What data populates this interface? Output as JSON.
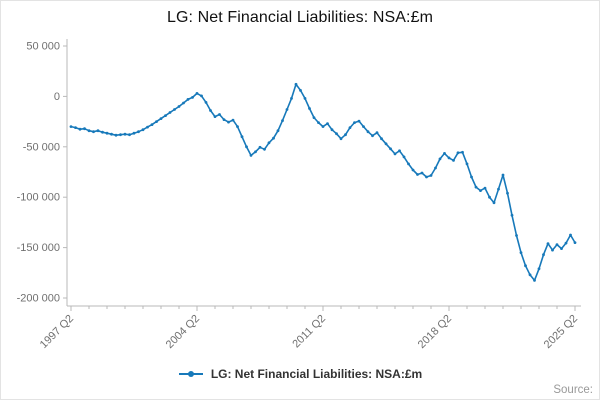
{
  "title": "LG: Net Financial Liabilities: NSA:£m",
  "source_label": "Source:",
  "legend": {
    "label": "LG: Net Financial Liabilities: NSA:£m"
  },
  "colors": {
    "line": "#1779ba",
    "axis": "#b9b9b9",
    "tick_text": "#707070"
  },
  "chart_data": {
    "type": "line",
    "title": "LG: Net Financial Liabilities: NSA:£m",
    "series_name": "LG: Net Financial Liabilities: NSA:£m",
    "frequency": "quarterly",
    "x_start": "1997 Q2",
    "x_end": "2025 Q2",
    "ylim": [
      -200000,
      50000
    ],
    "grid": false,
    "markers": true,
    "legend_position": "bottom",
    "x_ticks": [
      {
        "index": 0,
        "label": "1997 Q2"
      },
      {
        "index": 28,
        "label": "2004 Q2"
      },
      {
        "index": 56,
        "label": "2011 Q2"
      },
      {
        "index": 84,
        "label": "2018 Q2"
      },
      {
        "index": 112,
        "label": "2025 Q2"
      }
    ],
    "y_ticks": [
      {
        "value": 50000,
        "label": "50 000"
      },
      {
        "value": 0,
        "label": "0"
      },
      {
        "value": -50000,
        "label": "-50 000"
      },
      {
        "value": -100000,
        "label": "-100 000"
      },
      {
        "value": -150000,
        "label": "-150 000"
      },
      {
        "value": -200000,
        "label": "-200 000"
      }
    ],
    "values": [
      -30000,
      -31000,
      -32500,
      -32000,
      -34000,
      -35000,
      -34000,
      -35500,
      -36500,
      -37500,
      -38500,
      -38000,
      -37500,
      -38000,
      -36500,
      -35000,
      -33000,
      -30500,
      -28000,
      -25000,
      -22000,
      -19000,
      -16000,
      -13000,
      -10000,
      -6500,
      -3000,
      -1000,
      3000,
      500,
      -6000,
      -14000,
      -20000,
      -18000,
      -23000,
      -25500,
      -23500,
      -30000,
      -40000,
      -50000,
      -58500,
      -55000,
      -50500,
      -52500,
      -46000,
      -41500,
      -34000,
      -24000,
      -13000,
      -2000,
      12000,
      6000,
      -2000,
      -12000,
      -21000,
      -26000,
      -30000,
      -27000,
      -33000,
      -37000,
      -42000,
      -38000,
      -31000,
      -26000,
      -24500,
      -30000,
      -35000,
      -39000,
      -36000,
      -42000,
      -47000,
      -52000,
      -57000,
      -54000,
      -60000,
      -67000,
      -73000,
      -77500,
      -76000,
      -80000,
      -78500,
      -71000,
      -62000,
      -56500,
      -61000,
      -63500,
      -56000,
      -55500,
      -67000,
      -80000,
      -90000,
      -93500,
      -91000,
      -100000,
      -105500,
      -92000,
      -78000,
      -96000,
      -118000,
      -138000,
      -155000,
      -168000,
      -177000,
      -182500,
      -171000,
      -157000,
      -146000,
      -152500,
      -147000,
      -151000,
      -145500,
      -137500,
      -145000
    ]
  }
}
